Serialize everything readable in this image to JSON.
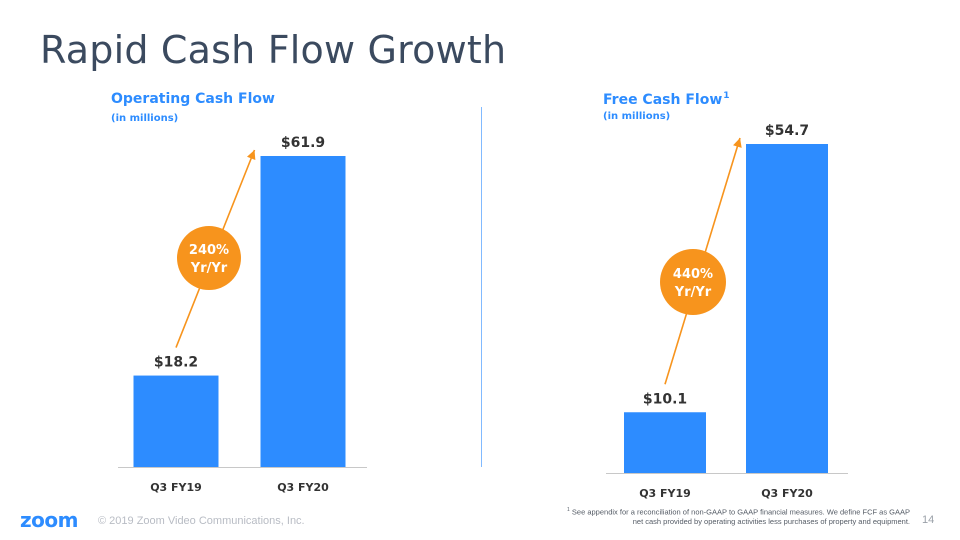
{
  "slide": {
    "title": "Rapid Cash Flow Growth",
    "brand": "zoom",
    "copyright": "© 2019 Zoom Video Communications, Inc.",
    "footnote_marker": "1",
    "footnote": "See appendix for a reconciliation of non-GAAP to GAAP financial measures. We define FCF as GAAP net cash provided by operating activities less purchases of property and equipment.",
    "page_number": "14"
  },
  "colors": {
    "bar": "#2d8cff",
    "accent": "#f7941d",
    "title": "#3b4a5f",
    "axis": "#c8c8c8"
  },
  "chart_data": [
    {
      "type": "bar",
      "title": "Operating Cash Flow",
      "subtitle": "(in millions)",
      "categories": [
        "Q3 FY19",
        "Q3 FY20"
      ],
      "values": [
        18.2,
        61.9
      ],
      "value_labels": [
        "$18.2",
        "$61.9"
      ],
      "ylim": [
        0,
        61.9
      ],
      "growth_label": [
        "240%",
        "Yr/Yr"
      ],
      "grid": false,
      "legend": "none"
    },
    {
      "type": "bar",
      "title": "Free Cash Flow",
      "title_superscript": "1",
      "subtitle": "(in millions)",
      "categories": [
        "Q3 FY19",
        "Q3 FY20"
      ],
      "values": [
        10.1,
        54.7
      ],
      "value_labels": [
        "$10.1",
        "$54.7"
      ],
      "ylim": [
        0,
        54.7
      ],
      "growth_label": [
        "440%",
        "Yr/Yr"
      ],
      "grid": false,
      "legend": "none"
    }
  ]
}
